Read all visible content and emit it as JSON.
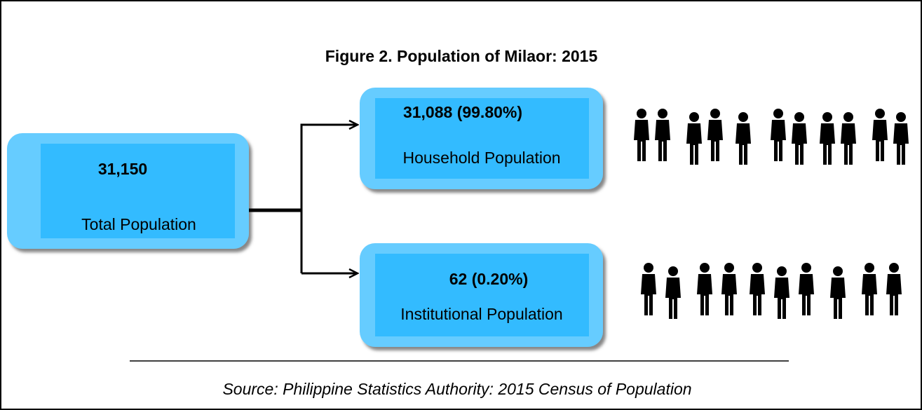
{
  "title": "Figure 2. Population of  Milaor: 2015",
  "nodes": [
    {
      "value": "31,150",
      "label": "Total Population"
    },
    {
      "value": "31,088 (99.80%)",
      "label": "Household  Population"
    },
    {
      "value": "62 (0.20%)",
      "label": "Institutional  Population"
    }
  ],
  "source": "Source: Philippine Statistics Authority: 2015 Census of Population"
}
